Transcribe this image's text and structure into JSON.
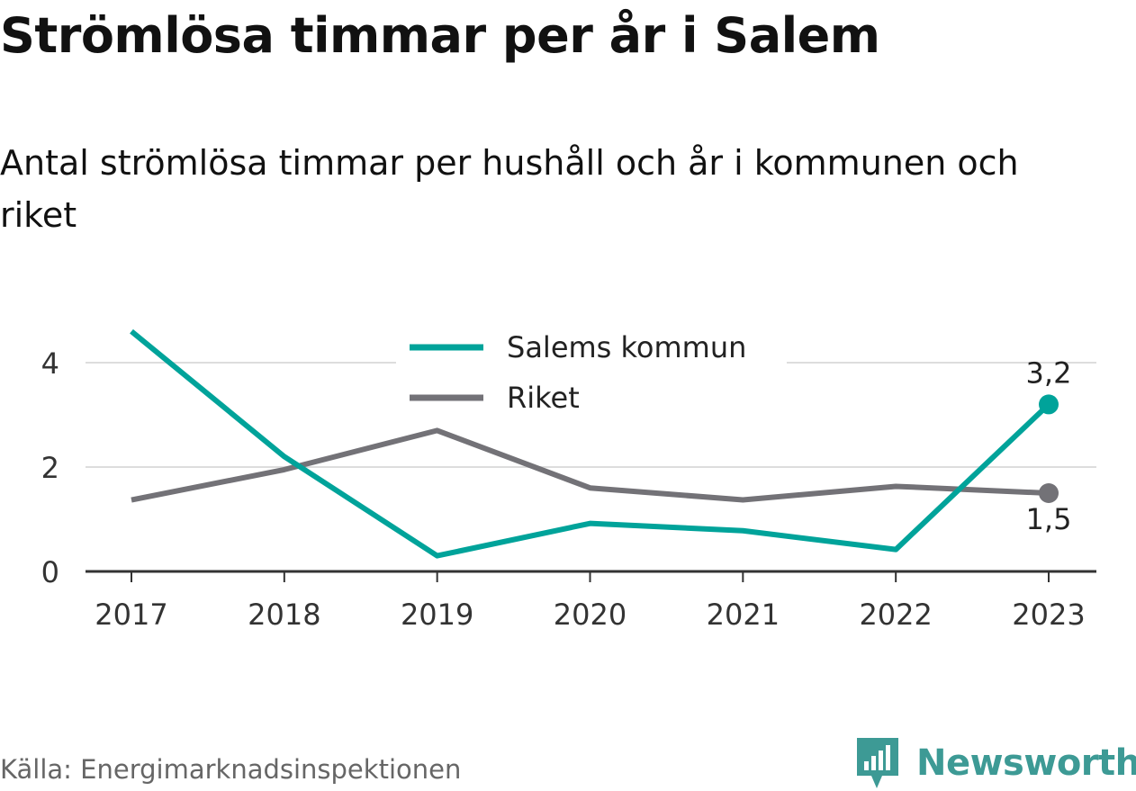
{
  "title": "Strömlösa timmar per år i Salem",
  "subtitle": "Antal strömlösa timmar per hushåll och år i kommunen och riket",
  "source": "Källa: Energimarknadsinspektionen",
  "brand": {
    "name": "Newsworthy",
    "icon": "newsworthy-logo-icon",
    "color": "#3d9a95"
  },
  "chart_data": {
    "type": "line",
    "x": [
      "2017",
      "2018",
      "2019",
      "2020",
      "2021",
      "2022",
      "2023"
    ],
    "ylim": [
      0,
      4.6
    ],
    "yticks": [
      "0",
      "2",
      "4"
    ],
    "ytick_values": [
      0,
      2,
      4
    ],
    "grid": true,
    "legend_position": "top-center",
    "series": [
      {
        "name": "Salems kommun",
        "color": "#00a39a",
        "values": [
          4.6,
          2.2,
          0.3,
          0.92,
          0.78,
          0.42,
          3.2
        ],
        "end_label": "3,2"
      },
      {
        "name": "Riket",
        "color": "#737277",
        "values": [
          1.37,
          1.95,
          2.7,
          1.6,
          1.37,
          1.63,
          1.5
        ],
        "end_label": "1,5"
      }
    ]
  }
}
